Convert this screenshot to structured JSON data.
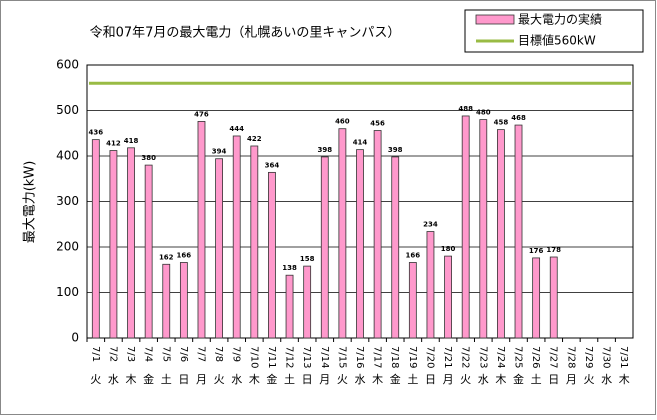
{
  "chart_data": {
    "type": "bar",
    "title": "令和07年7月の最大電力（札幌あいの里キャンパス）",
    "ylabel": "最大電力(kW)",
    "categories": [
      "7/1",
      "7/2",
      "7/3",
      "7/4",
      "7/5",
      "7/6",
      "7/7",
      "7/8",
      "7/9",
      "7/10",
      "7/11",
      "7/12",
      "7/13",
      "7/14",
      "7/15",
      "7/16",
      "7/17",
      "7/18",
      "7/19",
      "7/20",
      "7/21",
      "7/22",
      "7/23",
      "7/24",
      "7/25",
      "7/26",
      "7/27",
      "7/28",
      "7/29",
      "7/30",
      "7/31"
    ],
    "weekdays": [
      "火",
      "水",
      "木",
      "金",
      "土",
      "日",
      "月",
      "火",
      "水",
      "木",
      "金",
      "土",
      "日",
      "月",
      "火",
      "水",
      "木",
      "金",
      "土",
      "日",
      "月",
      "火",
      "水",
      "木",
      "金",
      "土",
      "日",
      "月",
      "火",
      "水",
      "木"
    ],
    "series": [
      {
        "name": "最大電力の実績",
        "color": "#ff99cc",
        "values": [
          436,
          412,
          418,
          380,
          162,
          166,
          476,
          394,
          444,
          422,
          364,
          138,
          158,
          398,
          460,
          414,
          456,
          398,
          166,
          234,
          180,
          488,
          480,
          458,
          468,
          176,
          178,
          null,
          null,
          null,
          null
        ]
      }
    ],
    "target": {
      "name": "目標値560kW",
      "value": 560,
      "color": "#99bb44"
    },
    "ylim": [
      0,
      600
    ],
    "yticks": [
      0,
      100,
      200,
      300,
      400,
      500,
      600
    ],
    "grid": true
  }
}
